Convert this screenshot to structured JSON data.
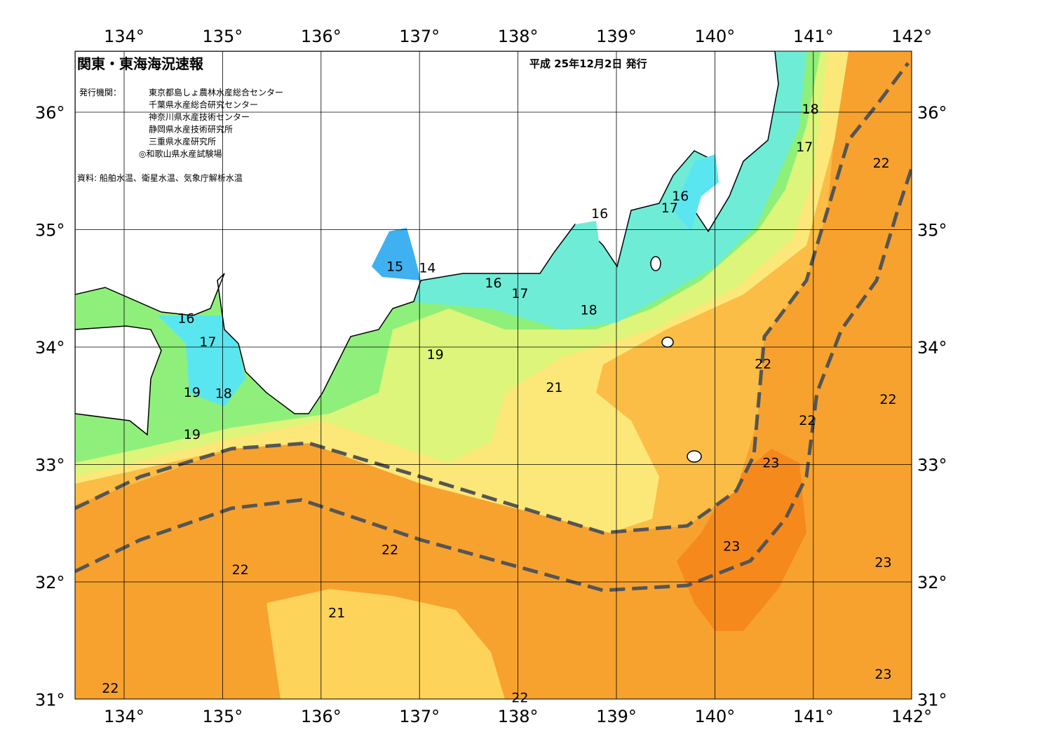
{
  "map": {
    "title": "関東・東海海況速報",
    "date": "平成 25年12月2日 発行",
    "issuer_label": "発行機関：",
    "issuers": [
      "東京都島しょ農林水産総合センター",
      "千葉県水産総合研究センター",
      "神奈川県水産技術センター",
      "静岡県水産技術研究所",
      "三重県水産研究所",
      "◎和歌山県水産試験場"
    ],
    "source": "資料: 船舶水温、衛星水温、気象庁解析水温",
    "lon_ticks": [
      {
        "value": 134,
        "label": "134°"
      },
      {
        "value": 135,
        "label": "135°"
      },
      {
        "value": 136,
        "label": "136°"
      },
      {
        "value": 137,
        "label": "137°"
      },
      {
        "value": 138,
        "label": "138°"
      },
      {
        "value": 139,
        "label": "139°"
      },
      {
        "value": 140,
        "label": "140°"
      },
      {
        "value": 141,
        "label": "141°"
      },
      {
        "value": 142,
        "label": "142°"
      }
    ],
    "lat_ticks": [
      {
        "value": 36,
        "label": "36°"
      },
      {
        "value": 35,
        "label": "35°"
      },
      {
        "value": 34,
        "label": "34°"
      },
      {
        "value": 33,
        "label": "33°"
      },
      {
        "value": 32,
        "label": "32°"
      },
      {
        "value": 31,
        "label": "31°"
      }
    ],
    "contour_labels": [
      {
        "value": 18,
        "lon": 140.97,
        "lat": 36.02
      },
      {
        "value": 17,
        "lon": 140.91,
        "lat": 35.7
      },
      {
        "value": 22,
        "lon": 141.69,
        "lat": 35.56
      },
      {
        "value": 16,
        "lon": 139.65,
        "lat": 35.28
      },
      {
        "value": 17,
        "lon": 139.54,
        "lat": 35.18
      },
      {
        "value": 16,
        "lon": 138.83,
        "lat": 35.13
      },
      {
        "value": 15,
        "lon": 136.75,
        "lat": 34.68
      },
      {
        "value": 14,
        "lon": 137.08,
        "lat": 34.67
      },
      {
        "value": 16,
        "lon": 137.75,
        "lat": 34.54
      },
      {
        "value": 17,
        "lon": 138.02,
        "lat": 34.45
      },
      {
        "value": 18,
        "lon": 138.72,
        "lat": 34.31
      },
      {
        "value": 16,
        "lon": 134.63,
        "lat": 34.24
      },
      {
        "value": 17,
        "lon": 134.85,
        "lat": 34.04
      },
      {
        "value": 19,
        "lon": 137.16,
        "lat": 33.93
      },
      {
        "value": 22,
        "lon": 140.49,
        "lat": 33.85
      },
      {
        "value": 21,
        "lon": 138.37,
        "lat": 33.65
      },
      {
        "value": 19,
        "lon": 134.69,
        "lat": 33.61
      },
      {
        "value": 18,
        "lon": 135.01,
        "lat": 33.6
      },
      {
        "value": 22,
        "lon": 141.76,
        "lat": 33.55
      },
      {
        "value": 22,
        "lon": 140.94,
        "lat": 33.37
      },
      {
        "value": 19,
        "lon": 134.69,
        "lat": 33.25
      },
      {
        "value": 23,
        "lon": 140.57,
        "lat": 33.01
      },
      {
        "value": 23,
        "lon": 140.17,
        "lat": 32.3
      },
      {
        "value": 22,
        "lon": 136.7,
        "lat": 32.27
      },
      {
        "value": 23,
        "lon": 141.71,
        "lat": 32.16
      },
      {
        "value": 22,
        "lon": 135.18,
        "lat": 32.1
      },
      {
        "value": 21,
        "lon": 136.16,
        "lat": 31.73
      },
      {
        "value": 23,
        "lon": 141.71,
        "lat": 31.21
      },
      {
        "value": 22,
        "lon": 133.86,
        "lat": 31.09
      },
      {
        "value": 22,
        "lon": 138.02,
        "lat": 31.01
      }
    ]
  }
}
